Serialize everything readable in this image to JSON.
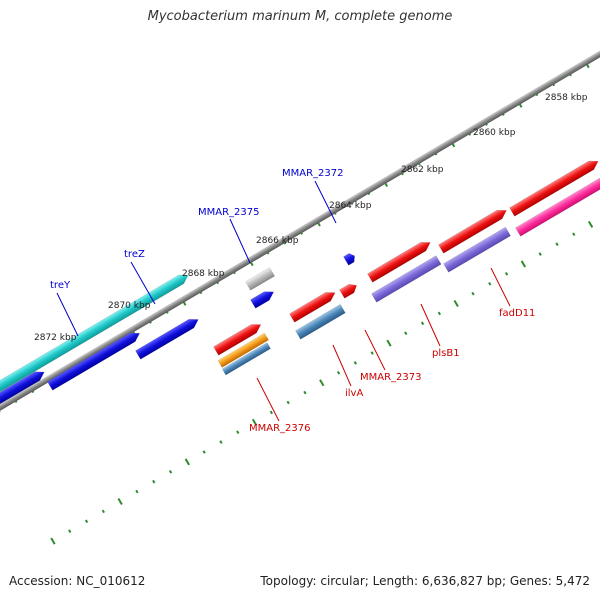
{
  "title": "Mycobacterium marinum M, complete genome",
  "footer": {
    "accession": "Accession: NC_010612",
    "topology": "Topology: circular; Length: 6,636,827 bp; Genes: 5,472"
  },
  "scale_labels": [
    "2858 kbp",
    "2860 kbp",
    "2862 kbp",
    "2864 kbp",
    "2866 kbp",
    "2868 kbp",
    "2870 kbp",
    "2872 kbp"
  ],
  "gene_labels": [
    {
      "text": "treY",
      "color": "#0000cc"
    },
    {
      "text": "treZ",
      "color": "#0000cc"
    },
    {
      "text": "MMAR_2375",
      "color": "#0000cc"
    },
    {
      "text": "MMAR_2372",
      "color": "#0000cc"
    },
    {
      "text": "MMAR_2376",
      "color": "#cc0000"
    },
    {
      "text": "ilvA",
      "color": "#cc0000"
    },
    {
      "text": "MMAR_2373",
      "color": "#cc0000"
    },
    {
      "text": "plsB1",
      "color": "#cc0000"
    },
    {
      "text": "fadD11",
      "color": "#cc0000"
    }
  ],
  "colors": {
    "backbone": "#8a8a8a",
    "tick": "#2e8b2e",
    "cyan": "#20c8c8",
    "blue": "#1010dd",
    "red": "#ee1111",
    "purple": "#7b68d8",
    "pink": "#ff2a9c",
    "orange": "#f59a1a",
    "steel": "#4a86b8",
    "gray": "#b0b0b0"
  }
}
